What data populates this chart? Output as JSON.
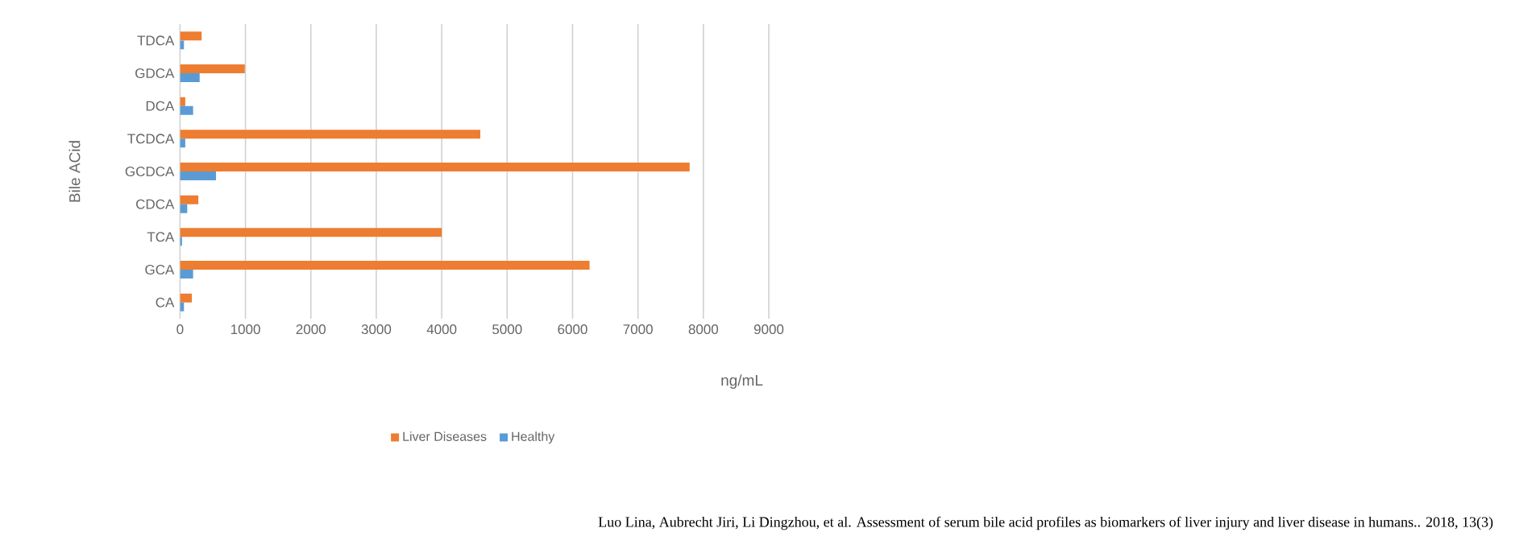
{
  "chart_data": {
    "type": "bar",
    "orientation": "horizontal",
    "categories": [
      "TDCA",
      "GDCA",
      "DCA",
      "TCDCA",
      "GCDCA",
      "CDCA",
      "TCA",
      "GCA",
      "CA"
    ],
    "series": [
      {
        "name": "Liver Diseases",
        "color": "#ed7d31",
        "values": [
          330,
          990,
          80,
          4590,
          7790,
          280,
          4000,
          6260,
          180
        ]
      },
      {
        "name": "Healthy",
        "color": "#5b9bd5",
        "values": [
          60,
          300,
          200,
          80,
          550,
          110,
          30,
          200,
          60
        ]
      }
    ],
    "xlabel": "ng/mL",
    "ylabel": "Bile ACid",
    "xlim": [
      0,
      9000
    ],
    "xticks": [
      0,
      1000,
      2000,
      3000,
      4000,
      5000,
      6000,
      7000,
      8000,
      9000
    ],
    "grid": "x",
    "legend": "bottom",
    "annotations": [
      "Luo Lina, Aubrecht Jiri, Li Dingzhou, et al. Assessment of serum bile acid profiles as biomarkers of liver injury and liver disease in humans.. 2018, 13(3)"
    ]
  }
}
